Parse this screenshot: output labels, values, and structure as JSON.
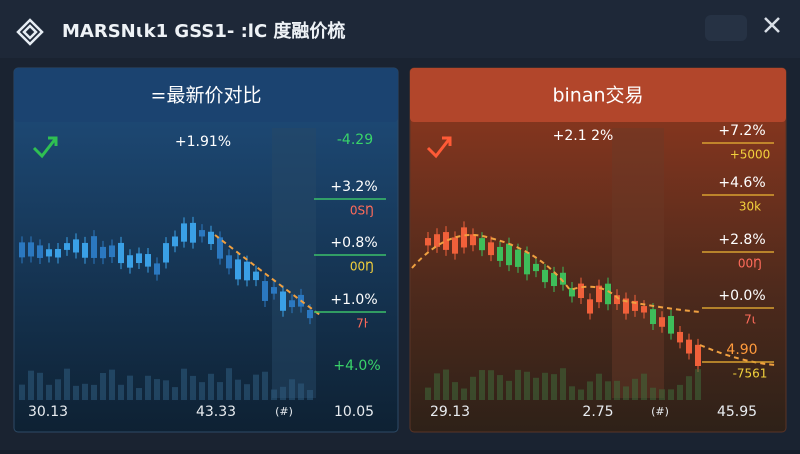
{
  "window": {
    "title": "MARSNɩk1 GSS1- :lC 度融价梳"
  },
  "panels": [
    {
      "title": "=最新价对比",
      "change": "+1.91%",
      "top_right": "-4.29",
      "labels": [
        {
          "pct": "+3.2%",
          "val": "0SŊ"
        },
        {
          "pct": "+0.8%",
          "val": "00Ŋ"
        },
        {
          "pct": "+1.0%",
          "val": "7ŀ"
        }
      ],
      "bottom_right": "+4.0%",
      "footer": [
        "30.13",
        "43.33",
        "(#)",
        "10.05"
      ]
    },
    {
      "title": "binan交易",
      "change": "+2.1 2%",
      "labels": [
        {
          "pct": "+7.2%",
          "val": "+5000"
        },
        {
          "pct": "+4.6%",
          "val": "30k"
        },
        {
          "pct": "+2.8%",
          "val": "00Ŋ"
        },
        {
          "pct": "+0.0%",
          "val": "7ɩ"
        },
        {
          "pct": "4.90",
          "val": "-7561"
        }
      ],
      "footer": [
        "29.13",
        "2.75",
        "(#)",
        "45.95"
      ]
    }
  ]
}
